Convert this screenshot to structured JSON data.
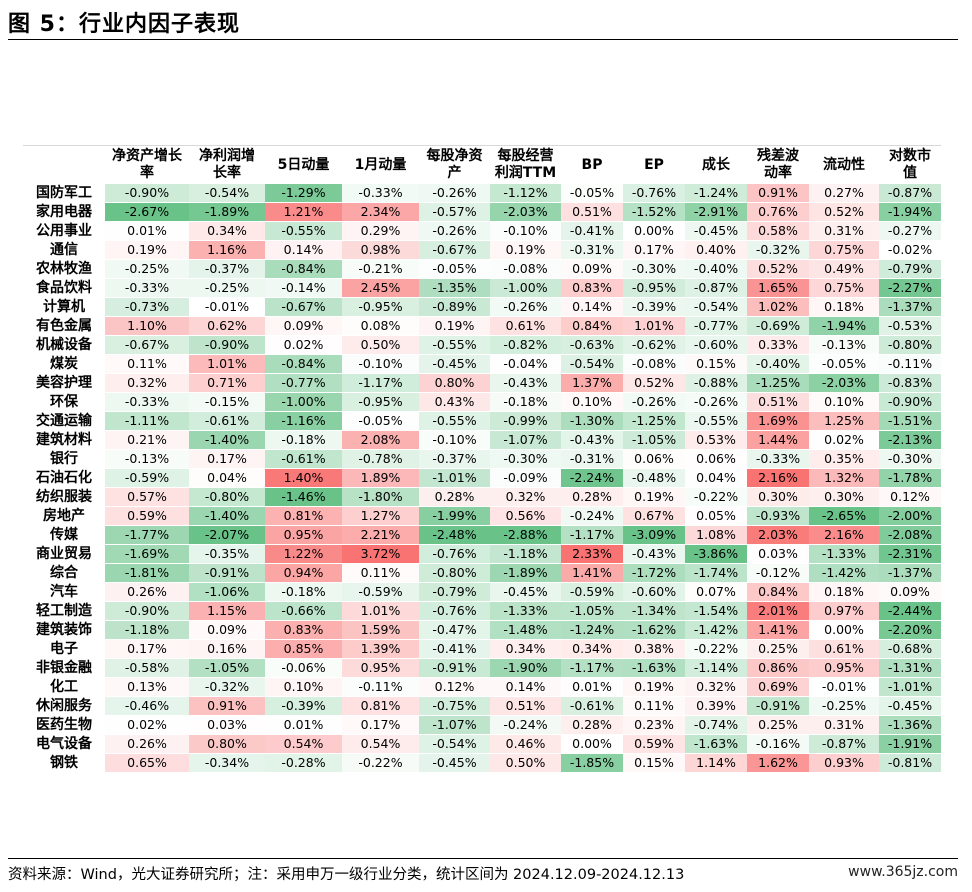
{
  "title": "图 5：行业内因子表现",
  "footer": "资料来源：Wind，光大证券研究所；注：采用申万一级行业分类，统计区间为 2024.12.09-2024.12.13",
  "watermark": "www.365jz.com",
  "colors": {
    "positive": "#f86c6b",
    "negative": "#4fb874",
    "neutral": "#ffffff"
  },
  "chart_data": {
    "type": "heatmap",
    "columns": [
      "净资产增长率",
      "净利润增长率",
      "5日动量",
      "1月动量",
      "每股净资产",
      "每股经营利润TTM",
      "BP",
      "EP",
      "成长",
      "残差波动率",
      "流动性",
      "对数市值"
    ],
    "column_display": [
      [
        "净资产增长",
        "率"
      ],
      [
        "净利润增",
        "长率"
      ],
      [
        "5日动量"
      ],
      [
        "1月动量"
      ],
      [
        "每股净资",
        "产"
      ],
      [
        "每股经营",
        "利润TTM"
      ],
      [
        "BP"
      ],
      [
        "EP"
      ],
      [
        "成长"
      ],
      [
        "残差波",
        "动率"
      ],
      [
        "流动性"
      ],
      [
        "对数市",
        "值"
      ]
    ],
    "rows": [
      "国防军工",
      "家用电器",
      "公用事业",
      "通信",
      "农林牧渔",
      "食品饮料",
      "计算机",
      "有色金属",
      "机械设备",
      "煤炭",
      "美容护理",
      "环保",
      "交通运输",
      "建筑材料",
      "银行",
      "石油石化",
      "纺织服装",
      "房地产",
      "传媒",
      "商业贸易",
      "综合",
      "汽车",
      "轻工制造",
      "建筑装饰",
      "电子",
      "非银金融",
      "化工",
      "休闲服务",
      "医药生物",
      "电气设备",
      "钢铁"
    ],
    "values": [
      [
        "-0.90%",
        "-0.54%",
        "-1.29%",
        "-0.33%",
        "-0.26%",
        "-1.12%",
        "-0.05%",
        "-0.76%",
        "-1.24%",
        "0.91%",
        "0.27%",
        "-0.87%"
      ],
      [
        "-2.67%",
        "-1.89%",
        "1.21%",
        "2.34%",
        "-0.57%",
        "-2.03%",
        "0.51%",
        "-1.52%",
        "-2.91%",
        "0.76%",
        "0.52%",
        "-1.94%"
      ],
      [
        "0.01%",
        "0.34%",
        "-0.55%",
        "0.29%",
        "-0.26%",
        "-0.10%",
        "-0.41%",
        "0.00%",
        "-0.45%",
        "0.58%",
        "0.31%",
        "-0.27%"
      ],
      [
        "0.19%",
        "1.16%",
        "0.14%",
        "0.98%",
        "-0.67%",
        "0.19%",
        "-0.31%",
        "0.17%",
        "0.40%",
        "-0.32%",
        "0.75%",
        "-0.02%"
      ],
      [
        "-0.25%",
        "-0.37%",
        "-0.84%",
        "-0.21%",
        "-0.05%",
        "-0.08%",
        "0.09%",
        "-0.30%",
        "-0.40%",
        "0.52%",
        "0.49%",
        "-0.79%"
      ],
      [
        "-0.33%",
        "-0.25%",
        "-0.14%",
        "2.45%",
        "-1.35%",
        "-1.00%",
        "0.83%",
        "-0.95%",
        "-0.87%",
        "1.65%",
        "0.75%",
        "-2.27%"
      ],
      [
        "-0.73%",
        "-0.01%",
        "-0.67%",
        "-0.95%",
        "-0.89%",
        "-0.26%",
        "0.14%",
        "-0.39%",
        "-0.54%",
        "1.02%",
        "0.18%",
        "-1.37%"
      ],
      [
        "1.10%",
        "0.62%",
        "0.09%",
        "0.08%",
        "0.19%",
        "0.61%",
        "0.84%",
        "1.01%",
        "-0.77%",
        "-0.69%",
        "-1.94%",
        "-0.53%"
      ],
      [
        "-0.67%",
        "-0.90%",
        "0.02%",
        "0.50%",
        "-0.55%",
        "-0.82%",
        "-0.63%",
        "-0.62%",
        "-0.60%",
        "0.33%",
        "-0.13%",
        "-0.80%"
      ],
      [
        "0.11%",
        "1.01%",
        "-0.84%",
        "-0.10%",
        "-0.45%",
        "-0.04%",
        "-0.54%",
        "-0.08%",
        "0.15%",
        "-0.40%",
        "-0.05%",
        "-0.11%"
      ],
      [
        "0.32%",
        "0.71%",
        "-0.77%",
        "-1.17%",
        "0.80%",
        "-0.43%",
        "1.37%",
        "0.52%",
        "-0.88%",
        "-1.25%",
        "-2.03%",
        "-0.83%"
      ],
      [
        "-0.33%",
        "-0.15%",
        "-1.00%",
        "-0.95%",
        "0.43%",
        "-0.18%",
        "0.10%",
        "-0.26%",
        "-0.26%",
        "0.51%",
        "0.10%",
        "-0.90%"
      ],
      [
        "-1.11%",
        "-0.61%",
        "-1.16%",
        "-0.05%",
        "-0.55%",
        "-0.99%",
        "-1.30%",
        "-1.25%",
        "-0.55%",
        "1.69%",
        "1.25%",
        "-1.51%"
      ],
      [
        "0.21%",
        "-1.40%",
        "-0.18%",
        "2.08%",
        "-0.10%",
        "-1.07%",
        "-0.43%",
        "-1.05%",
        "0.53%",
        "1.44%",
        "0.02%",
        "-2.13%"
      ],
      [
        "-0.13%",
        "0.17%",
        "-0.61%",
        "-0.78%",
        "-0.37%",
        "-0.30%",
        "-0.31%",
        "0.06%",
        "0.06%",
        "-0.33%",
        "0.35%",
        "-0.30%"
      ],
      [
        "-0.59%",
        "0.04%",
        "1.40%",
        "1.89%",
        "-1.01%",
        "-0.09%",
        "-2.24%",
        "-0.48%",
        "0.04%",
        "2.16%",
        "1.32%",
        "-1.78%"
      ],
      [
        "0.57%",
        "-0.80%",
        "-1.46%",
        "-1.80%",
        "0.28%",
        "0.32%",
        "0.28%",
        "0.19%",
        "-0.22%",
        "0.30%",
        "0.30%",
        "0.12%"
      ],
      [
        "0.59%",
        "-1.40%",
        "0.81%",
        "1.27%",
        "-1.99%",
        "0.56%",
        "-0.24%",
        "0.67%",
        "0.05%",
        "-0.93%",
        "-2.65%",
        "-2.00%"
      ],
      [
        "-1.77%",
        "-2.07%",
        "0.95%",
        "2.21%",
        "-2.48%",
        "-2.88%",
        "-1.17%",
        "-3.09%",
        "1.08%",
        "2.03%",
        "2.16%",
        "-2.08%"
      ],
      [
        "-1.69%",
        "-0.35%",
        "1.22%",
        "3.72%",
        "-0.76%",
        "-1.18%",
        "2.33%",
        "-0.43%",
        "-3.86%",
        "0.03%",
        "-1.33%",
        "-2.31%"
      ],
      [
        "-1.81%",
        "-0.91%",
        "0.94%",
        "0.11%",
        "-0.80%",
        "-1.89%",
        "1.41%",
        "-1.72%",
        "-1.74%",
        "-0.12%",
        "-1.42%",
        "-1.37%"
      ],
      [
        "0.26%",
        "-1.06%",
        "-0.18%",
        "-0.59%",
        "-0.79%",
        "-0.45%",
        "-0.59%",
        "-0.60%",
        "0.07%",
        "0.84%",
        "0.18%",
        "0.09%"
      ],
      [
        "-0.90%",
        "1.15%",
        "-0.66%",
        "1.01%",
        "-0.76%",
        "-1.33%",
        "-1.05%",
        "-1.34%",
        "-1.54%",
        "2.01%",
        "0.97%",
        "-2.44%"
      ],
      [
        "-1.18%",
        "0.09%",
        "0.83%",
        "1.59%",
        "-0.47%",
        "-1.48%",
        "-1.24%",
        "-1.62%",
        "-1.42%",
        "1.41%",
        "0.00%",
        "-2.20%"
      ],
      [
        "0.17%",
        "0.16%",
        "0.85%",
        "1.39%",
        "-0.41%",
        "0.34%",
        "0.34%",
        "0.38%",
        "-0.22%",
        "0.25%",
        "0.61%",
        "-0.68%"
      ],
      [
        "-0.58%",
        "-1.05%",
        "-0.06%",
        "0.95%",
        "-0.91%",
        "-1.90%",
        "-1.17%",
        "-1.63%",
        "-1.14%",
        "0.86%",
        "0.95%",
        "-1.31%"
      ],
      [
        "0.13%",
        "-0.32%",
        "0.10%",
        "-0.11%",
        "0.12%",
        "0.14%",
        "0.01%",
        "0.19%",
        "0.32%",
        "0.69%",
        "-0.01%",
        "-1.01%"
      ],
      [
        "-0.46%",
        "0.91%",
        "-0.39%",
        "0.81%",
        "-0.75%",
        "0.51%",
        "-0.61%",
        "0.11%",
        "0.39%",
        "-0.91%",
        "-0.25%",
        "-0.45%"
      ],
      [
        "0.02%",
        "0.03%",
        "0.01%",
        "0.17%",
        "-1.07%",
        "-0.24%",
        "0.28%",
        "0.23%",
        "-0.74%",
        "0.25%",
        "0.31%",
        "-1.36%"
      ],
      [
        "0.26%",
        "0.80%",
        "0.54%",
        "0.54%",
        "-0.54%",
        "0.46%",
        "0.00%",
        "0.59%",
        "-1.63%",
        "-0.16%",
        "-0.87%",
        "-1.91%"
      ],
      [
        "0.65%",
        "-0.34%",
        "-0.28%",
        "-0.22%",
        "-0.45%",
        "0.50%",
        "-1.85%",
        "0.15%",
        "1.14%",
        "1.62%",
        "0.93%",
        "-0.81%"
      ]
    ]
  }
}
